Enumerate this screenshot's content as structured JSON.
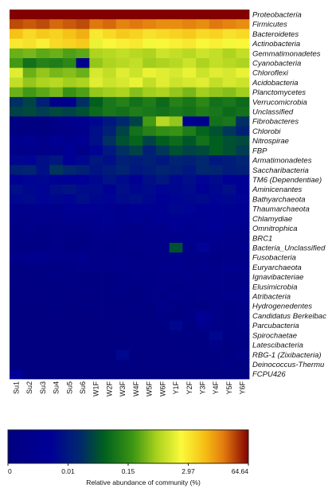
{
  "chart_data": {
    "type": "heatmap",
    "rows": [
      "Proteobacteria",
      "Firmicutes",
      "Bacteroidetes",
      "Actinobacteria",
      "Gemmatimonadetes",
      "Cyanobacteria",
      "Chloroflexi",
      "Acidobacteria",
      "Planctomycetes",
      "Verrucomicrobia",
      "Unclassified",
      "Fibrobacteres",
      "Chlorobi",
      "Nitrospirae",
      "FBP",
      "Armatimonadetes",
      "Saccharibacteria",
      "TM6 (Dependentiae)",
      "Aminicenantes",
      "Bathyarchaeota",
      "Thaumarchaeota",
      "Chlamydiae",
      "Omnitrophica",
      "BRC1",
      "Bacteria_Unclassified",
      "Fusobacteria",
      "Euryarchaeota",
      "Ignavibacteriae",
      "Elusimicrobia",
      "Atribacteria",
      "Hydrogenedentes",
      "Candidatus Berkelbac",
      "Parcubacteria",
      "Spirochaetae",
      "Latescibacteria",
      "RBG-1 (Zixibacteria)",
      "Deinococcus-Thermu",
      "FCPU426"
    ],
    "columns": [
      "Su1",
      "Su2",
      "Su3",
      "Su4",
      "Su5",
      "Su6",
      "W1F",
      "W2F",
      "W3F",
      "W4F",
      "W5F",
      "W6F",
      "Y1F",
      "Y2F",
      "Y3F",
      "Y4F",
      "Y5F",
      "Y6F"
    ],
    "values": [
      [
        9,
        9,
        9,
        9,
        9,
        9,
        9,
        9,
        9,
        9,
        9,
        9,
        9,
        9,
        9,
        9,
        9,
        9
      ],
      [
        8.5,
        8.4,
        8.5,
        8.3,
        8.4,
        8.5,
        8.2,
        8.3,
        8.1,
        8.2,
        8.1,
        8,
        8,
        8.1,
        8,
        8.2,
        8.1,
        8
      ],
      [
        7.5,
        7.2,
        7.4,
        7.3,
        7.5,
        7.7,
        7,
        7.2,
        7.4,
        7.3,
        7.1,
        7.2,
        7.3,
        7.4,
        7.2,
        7.3,
        7.1,
        7.2
      ],
      [
        7,
        7.1,
        6.9,
        7.2,
        7.3,
        7.4,
        6.6,
        6.8,
        6.9,
        7,
        6.7,
        6.8,
        6.9,
        7,
        6.8,
        6.9,
        6.7,
        6.8
      ],
      [
        5.5,
        5.6,
        5.4,
        5.5,
        5.3,
        5.4,
        6,
        6.1,
        6.2,
        6.1,
        6,
        6.3,
        6.2,
        6.1,
        6.3,
        6.2,
        6,
        6.2
      ],
      [
        5.2,
        4.5,
        4.8,
        4.7,
        4.9,
        2,
        5.8,
        6,
        6.1,
        6.2,
        5.9,
        6,
        6.1,
        6.3,
        6,
        6.2,
        6.1,
        6
      ],
      [
        6.5,
        5.5,
        5.8,
        5.6,
        5.7,
        5.5,
        6.4,
        6.2,
        6.5,
        6.3,
        6.6,
        6.5,
        6.4,
        6.6,
        6.3,
        6.5,
        6.4,
        6.6
      ],
      [
        6.2,
        5.8,
        6,
        6.1,
        5.9,
        6,
        6.5,
        6.3,
        6.4,
        6.6,
        6.2,
        6.5,
        6.3,
        6.4,
        6.5,
        6.2,
        6.4,
        6.3
      ],
      [
        5.5,
        5.2,
        5.4,
        5.6,
        5.1,
        5.3,
        5.8,
        5.9,
        6,
        5.7,
        5.9,
        6,
        5.8,
        5.6,
        5.9,
        5.8,
        5.7,
        5.9
      ],
      [
        3.5,
        3.8,
        3.2,
        1.6,
        2,
        3.5,
        4.2,
        4.6,
        4.8,
        4.5,
        4.7,
        4.4,
        4.8,
        4.6,
        4.9,
        4.5,
        4.6,
        4.4
      ],
      [
        3.8,
        3.9,
        3.7,
        3.9,
        3.8,
        4,
        4.4,
        4.6,
        4.5,
        4.7,
        4.6,
        4.5,
        4.6,
        4.5,
        4.7,
        4.6,
        4.4,
        4.5
      ],
      [
        1.2,
        1.2,
        1.2,
        1.5,
        1.8,
        2,
        2.6,
        3,
        3.4,
        3.8,
        5.2,
        6.1,
        5.8,
        2.2,
        1.8,
        4.5,
        4.6,
        3.5
      ],
      [
        1.2,
        1.3,
        1.1,
        1.4,
        1.6,
        1.8,
        2.8,
        3.2,
        3.8,
        4.5,
        4.8,
        5,
        5.1,
        4.7,
        4.3,
        4,
        3.6,
        3.2
      ],
      [
        2,
        2.1,
        1.8,
        2.2,
        2,
        2.3,
        2.8,
        3.5,
        4,
        4.3,
        3.8,
        4.2,
        4.4,
        4.1,
        4.5,
        4.2,
        4,
        3.9
      ],
      [
        1.5,
        1.8,
        1.6,
        1.7,
        2.3,
        1.6,
        2.5,
        3,
        3.5,
        3.8,
        3.2,
        3.6,
        4,
        3.8,
        3.9,
        4.2,
        4,
        3.7
      ],
      [
        2.6,
        2.5,
        2.8,
        3,
        2.4,
        2.6,
        3,
        2.8,
        3.2,
        3.1,
        3.2,
        3,
        3.3,
        3.2,
        3.4,
        3,
        3.1,
        3.3
      ],
      [
        3.2,
        3.3,
        2.8,
        3.6,
        3.4,
        3.2,
        2.9,
        3.1,
        3.3,
        3,
        3.1,
        3.3,
        3.2,
        3,
        3.4,
        3.3,
        3.1,
        3.2
      ],
      [
        2.3,
        2.5,
        2.6,
        2.2,
        2.4,
        2.4,
        2.6,
        2.9,
        2.7,
        2.4,
        2.8,
        3,
        2.6,
        2.8,
        2.5,
        2.7,
        2.4,
        2.3
      ],
      [
        2.8,
        2.6,
        2.5,
        2.8,
        2.9,
        2.7,
        2.7,
        2.4,
        2.8,
        2.6,
        2.7,
        2.5,
        2.6,
        2.7,
        2.3,
        2.6,
        2.8,
        2.4
      ],
      [
        2.6,
        2.7,
        2.5,
        2.6,
        2.5,
        2.8,
        2.6,
        2.5,
        2.7,
        2.8,
        2.6,
        2.4,
        2.5,
        2.6,
        2.7,
        2.5,
        2.6,
        2.5
      ],
      [
        1.8,
        1.8,
        1.9,
        2,
        2.2,
        2.3,
        2.2,
        2.1,
        2,
        2.3,
        2.4,
        2.2,
        2.6,
        2.5,
        2.4,
        2.3,
        2.2,
        2.4
      ],
      [
        1.6,
        1.7,
        1.8,
        1.7,
        1.9,
        1.8,
        2,
        2.1,
        1.9,
        2.2,
        2,
        2.3,
        2.2,
        2.4,
        2.1,
        2.3,
        2.2,
        2.1
      ],
      [
        1.4,
        1.5,
        1.4,
        1.6,
        1.5,
        1.7,
        1.8,
        1.9,
        1.7,
        1.6,
        2,
        1.8,
        2.2,
        1.9,
        2.1,
        2.3,
        2,
        1.9
      ],
      [
        1.3,
        1.4,
        1.3,
        1.5,
        1.4,
        1.3,
        1.5,
        1.6,
        1.5,
        1.7,
        1.6,
        1.8,
        1.7,
        1.9,
        1.8,
        2,
        1.8,
        1.7
      ],
      [
        1.3,
        1.2,
        1.4,
        1.5,
        1.3,
        1.4,
        1.5,
        1.4,
        1.6,
        1.5,
        1.7,
        1.6,
        4,
        1.7,
        2.5,
        1.8,
        1.7,
        1.9
      ],
      [
        1.8,
        1.9,
        2,
        1.8,
        1.7,
        1.9,
        1.6,
        1.5,
        1.7,
        1.4,
        1.6,
        1.5,
        1.7,
        1.5,
        1.6,
        1.4,
        1.5,
        1.6
      ],
      [
        1.2,
        1.3,
        1.4,
        1.3,
        1.4,
        1.5,
        1.6,
        1.5,
        1.7,
        1.6,
        1.5,
        1.7,
        1.8,
        1.6,
        1.9,
        1.7,
        2,
        1.8
      ],
      [
        1.1,
        1.2,
        1.3,
        1.4,
        1.3,
        1.2,
        1.2,
        1.3,
        1.4,
        1.5,
        1.4,
        1.6,
        1.5,
        1.7,
        1.6,
        1.8,
        1.5,
        1.7
      ],
      [
        1,
        1.1,
        1.2,
        1.1,
        1.2,
        1.3,
        1.3,
        1.2,
        1.4,
        1.3,
        1.4,
        1.5,
        1.4,
        1.6,
        1.5,
        1.7,
        1.6,
        1.5
      ],
      [
        1,
        1,
        1.1,
        1.2,
        1.1,
        1,
        1.2,
        1.1,
        1.3,
        1.2,
        1.4,
        1.3,
        1.5,
        1.4,
        1.6,
        1.5,
        1.7,
        1.8
      ],
      [
        1,
        1,
        1,
        1.1,
        1,
        1.1,
        1.1,
        1.2,
        1.1,
        1.3,
        1.2,
        1.7,
        1.3,
        1.4,
        1.2,
        1.5,
        1.4,
        1.6
      ],
      [
        1,
        1,
        1,
        1,
        1,
        1,
        1,
        1.1,
        1,
        1.2,
        1.1,
        1.3,
        1.2,
        1.4,
        2.4,
        1.5,
        1.3,
        1.5
      ],
      [
        1,
        1,
        1,
        1,
        1,
        1,
        1,
        1,
        1.1,
        1,
        1.2,
        1.1,
        2.6,
        1.2,
        1.9,
        1.4,
        1.3,
        1.5
      ],
      [
        1,
        1,
        1,
        1,
        1,
        1,
        1,
        1,
        1,
        1.1,
        1,
        1.2,
        1.1,
        1.3,
        1.2,
        2.6,
        1.4,
        1.3
      ],
      [
        1,
        1,
        1,
        1,
        1,
        1,
        1,
        1,
        1,
        1,
        1.1,
        1,
        1.2,
        1.1,
        1.3,
        1.5,
        1.2,
        1.4
      ],
      [
        1,
        1,
        1,
        1,
        1,
        1,
        1,
        1,
        2.6,
        1,
        1,
        1.1,
        1,
        1.2,
        1.1,
        1.3,
        1.2,
        1.5
      ],
      [
        1,
        1,
        1,
        1,
        1,
        1,
        1,
        1,
        1,
        1,
        1,
        1,
        1.1,
        1,
        1.2,
        1.1,
        1.3,
        1.2
      ],
      [
        2.4,
        1,
        1,
        1,
        1,
        1,
        1,
        1,
        1,
        1,
        1,
        1,
        1,
        1,
        1,
        1,
        1.1,
        1.2
      ]
    ],
    "colorbar": {
      "ticks": [
        "0",
        "0.01",
        "0.15",
        "2.97",
        "64.64"
      ],
      "label": "Relative abundance of community (%)"
    }
  }
}
